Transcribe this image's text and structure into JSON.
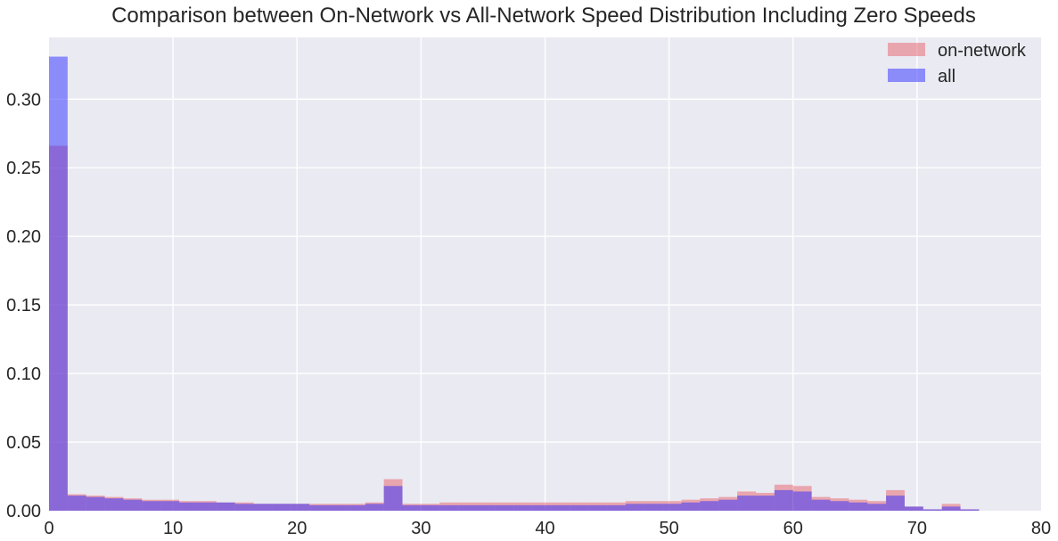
{
  "chart_data": {
    "type": "bar",
    "title": "Comparison between On-Network vs All-Network Speed Distribution Including Zero Speeds",
    "xlabel": "",
    "ylabel": "",
    "xlim": [
      0,
      80
    ],
    "ylim": [
      0,
      0.345
    ],
    "xticks": [
      "0",
      "10",
      "20",
      "30",
      "40",
      "50",
      "60",
      "70",
      "80"
    ],
    "yticks": [
      "0.00",
      "0.05",
      "0.10",
      "0.15",
      "0.20",
      "0.25",
      "0.30"
    ],
    "grid": true,
    "legend_position": "top-right",
    "bin_width": 1.5,
    "bin_start": 0,
    "series": [
      {
        "name": "on-network",
        "color": "#e8606a",
        "opacity": 0.5,
        "values": [
          0.266,
          0.012,
          0.011,
          0.01,
          0.009,
          0.008,
          0.008,
          0.007,
          0.007,
          0.006,
          0.006,
          0.005,
          0.005,
          0.005,
          0.005,
          0.005,
          0.005,
          0.006,
          0.023,
          0.005,
          0.005,
          0.006,
          0.006,
          0.006,
          0.006,
          0.006,
          0.006,
          0.006,
          0.006,
          0.006,
          0.006,
          0.007,
          0.007,
          0.007,
          0.008,
          0.009,
          0.01,
          0.014,
          0.013,
          0.019,
          0.018,
          0.01,
          0.009,
          0.008,
          0.007,
          0.015,
          0.003,
          0.001,
          0.005,
          0.001
        ]
      },
      {
        "name": "all",
        "color": "#2b2bff",
        "opacity": 0.5,
        "values": [
          0.331,
          0.011,
          0.01,
          0.009,
          0.008,
          0.007,
          0.007,
          0.006,
          0.006,
          0.006,
          0.005,
          0.005,
          0.005,
          0.005,
          0.004,
          0.004,
          0.004,
          0.005,
          0.018,
          0.004,
          0.004,
          0.004,
          0.004,
          0.004,
          0.004,
          0.004,
          0.004,
          0.004,
          0.004,
          0.004,
          0.004,
          0.005,
          0.005,
          0.005,
          0.006,
          0.007,
          0.008,
          0.011,
          0.011,
          0.015,
          0.014,
          0.008,
          0.007,
          0.006,
          0.005,
          0.011,
          0.003,
          0.001,
          0.003,
          0.001
        ]
      }
    ]
  }
}
